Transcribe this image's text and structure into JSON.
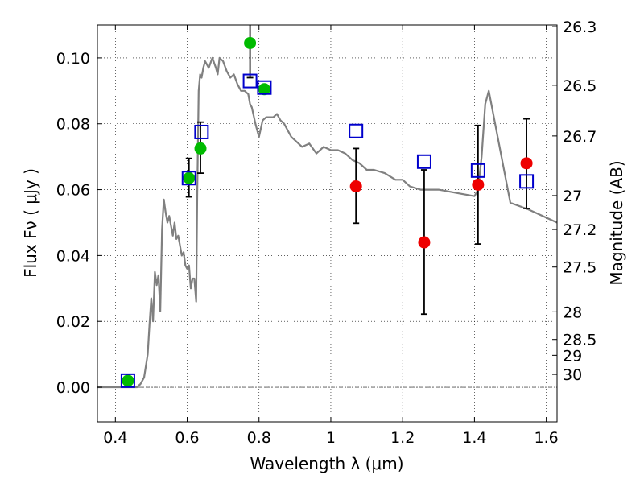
{
  "chart_data": {
    "type": "scatter",
    "xlabel": "Wavelength  λ (μm)",
    "ylabel_left": "Flux  Fν  ( μJy )",
    "ylabel_right": "Magnitude (AB)",
    "xlim": [
      0.35,
      1.63
    ],
    "ylim": [
      -0.0105,
      0.11
    ],
    "grid": true,
    "x_ticks": [
      {
        "value": 0.4,
        "label": "0.4"
      },
      {
        "value": 0.6,
        "label": "0.6"
      },
      {
        "value": 0.8,
        "label": "0.8"
      },
      {
        "value": 1.0,
        "label": "1"
      },
      {
        "value": 1.2,
        "label": "1.2"
      },
      {
        "value": 1.4,
        "label": "1.4"
      },
      {
        "value": 1.6,
        "label": "1.6"
      }
    ],
    "y_ticks": [
      {
        "value": 0.0,
        "label": "0.00"
      },
      {
        "value": 0.02,
        "label": "0.02"
      },
      {
        "value": 0.04,
        "label": "0.04"
      },
      {
        "value": 0.06,
        "label": "0.06"
      },
      {
        "value": 0.08,
        "label": "0.08"
      },
      {
        "value": 0.1,
        "label": "0.10"
      }
    ],
    "mag_ticks": [
      {
        "flux": 0.1095,
        "label": "26.3"
      },
      {
        "flux": 0.0917,
        "label": "26.5"
      },
      {
        "flux": 0.0763,
        "label": "26.7"
      },
      {
        "flux": 0.0582,
        "label": "27"
      },
      {
        "flux": 0.0479,
        "label": "27.2"
      },
      {
        "flux": 0.0365,
        "label": "27.5"
      },
      {
        "flux": 0.0229,
        "label": "28"
      },
      {
        "flux": 0.0145,
        "label": "28.5"
      },
      {
        "flux": 0.0097,
        "label": "29"
      },
      {
        "flux": 0.0039,
        "label": "30"
      }
    ],
    "series": [
      {
        "name": "model spectrum",
        "kind": "line",
        "color": "#808080",
        "x": [
          0.35,
          0.46,
          0.47,
          0.48,
          0.49,
          0.495,
          0.5,
          0.505,
          0.51,
          0.515,
          0.52,
          0.525,
          0.53,
          0.535,
          0.54,
          0.545,
          0.55,
          0.56,
          0.565,
          0.57,
          0.575,
          0.58,
          0.585,
          0.59,
          0.595,
          0.6,
          0.605,
          0.61,
          0.615,
          0.62,
          0.625,
          0.628,
          0.632,
          0.636,
          0.64,
          0.645,
          0.65,
          0.66,
          0.67,
          0.68,
          0.685,
          0.69,
          0.7,
          0.71,
          0.72,
          0.73,
          0.74,
          0.75,
          0.76,
          0.77,
          0.775,
          0.78,
          0.79,
          0.8,
          0.81,
          0.82,
          0.83,
          0.84,
          0.85,
          0.86,
          0.87,
          0.88,
          0.89,
          0.9,
          0.92,
          0.94,
          0.96,
          0.98,
          1.0,
          1.02,
          1.04,
          1.06,
          1.08,
          1.1,
          1.12,
          1.15,
          1.18,
          1.2,
          1.22,
          1.25,
          1.28,
          1.3,
          1.35,
          1.4,
          1.41,
          1.42,
          1.43,
          1.44,
          1.5,
          1.55,
          1.63
        ],
        "y": [
          0.0,
          0.0,
          0.001,
          0.003,
          0.01,
          0.019,
          0.027,
          0.02,
          0.035,
          0.031,
          0.034,
          0.023,
          0.048,
          0.057,
          0.053,
          0.05,
          0.052,
          0.046,
          0.05,
          0.045,
          0.046,
          0.043,
          0.04,
          0.041,
          0.037,
          0.036,
          0.037,
          0.03,
          0.033,
          0.033,
          0.026,
          0.058,
          0.09,
          0.095,
          0.094,
          0.097,
          0.099,
          0.097,
          0.1,
          0.097,
          0.095,
          0.1,
          0.099,
          0.096,
          0.094,
          0.095,
          0.092,
          0.09,
          0.09,
          0.089,
          0.086,
          0.085,
          0.08,
          0.076,
          0.081,
          0.082,
          0.082,
          0.082,
          0.083,
          0.081,
          0.08,
          0.078,
          0.076,
          0.075,
          0.073,
          0.074,
          0.071,
          0.073,
          0.072,
          0.072,
          0.071,
          0.069,
          0.068,
          0.066,
          0.066,
          0.065,
          0.063,
          0.063,
          0.061,
          0.06,
          0.06,
          0.06,
          0.059,
          0.058,
          0.06,
          0.07,
          0.086,
          0.09,
          0.056,
          0.054,
          0.05
        ]
      },
      {
        "name": "green points",
        "kind": "circle",
        "color": "#00bb00",
        "points": [
          {
            "x": 0.435,
            "y": 0.002
          },
          {
            "x": 0.605,
            "y": 0.0635
          },
          {
            "x": 0.637,
            "y": 0.0725
          },
          {
            "x": 0.775,
            "y": 0.1045
          },
          {
            "x": 0.815,
            "y": 0.0905
          }
        ]
      },
      {
        "name": "red points",
        "kind": "circle",
        "color": "#ee0000",
        "points": [
          {
            "x": 1.07,
            "y": 0.061
          },
          {
            "x": 1.26,
            "y": 0.044
          },
          {
            "x": 1.41,
            "y": 0.0615
          },
          {
            "x": 1.545,
            "y": 0.068
          }
        ]
      },
      {
        "name": "blue squares",
        "kind": "square",
        "color": "#0000cc",
        "points": [
          {
            "x": 0.435,
            "y": 0.002
          },
          {
            "x": 0.605,
            "y": 0.0635
          },
          {
            "x": 0.64,
            "y": 0.0775
          },
          {
            "x": 0.775,
            "y": 0.093
          },
          {
            "x": 0.815,
            "y": 0.091
          },
          {
            "x": 1.07,
            "y": 0.0778
          },
          {
            "x": 1.26,
            "y": 0.0685
          },
          {
            "x": 1.41,
            "y": 0.0658
          },
          {
            "x": 1.545,
            "y": 0.0625
          }
        ]
      },
      {
        "name": "error bars",
        "kind": "errorbar",
        "color": "#000000",
        "bars": [
          {
            "x": 0.605,
            "low": 0.0578,
            "high": 0.0695
          },
          {
            "x": 0.637,
            "low": 0.065,
            "high": 0.0805
          },
          {
            "x": 0.775,
            "low": 0.094,
            "high": 0.112
          },
          {
            "x": 1.07,
            "low": 0.0498,
            "high": 0.0725
          },
          {
            "x": 1.26,
            "low": 0.0222,
            "high": 0.066
          },
          {
            "x": 1.41,
            "low": 0.0435,
            "high": 0.0795
          },
          {
            "x": 1.545,
            "low": 0.0543,
            "high": 0.0815
          }
        ]
      }
    ]
  }
}
